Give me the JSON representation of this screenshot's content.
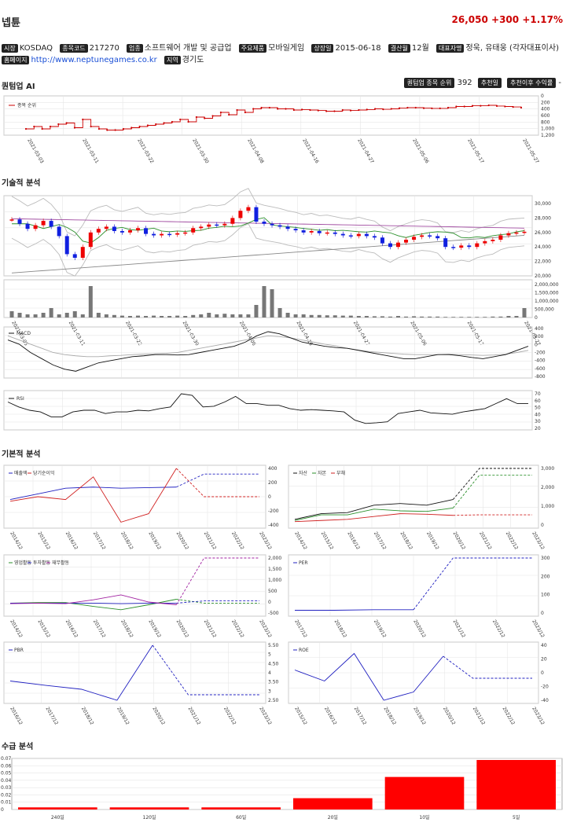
{
  "header": {
    "name": "넵튠",
    "price": "26,050",
    "change": "+300",
    "change_pct": "+1.17%"
  },
  "info1": [
    {
      "label": "시장",
      "value": "KOSDAQ"
    },
    {
      "label": "종목코드",
      "value": "217270"
    },
    {
      "label": "업종",
      "value": "소프트웨어 개발 및 공급업"
    },
    {
      "label": "주요제품",
      "value": "모바일게임"
    },
    {
      "label": "상장일",
      "value": "2015-06-18"
    },
    {
      "label": "결산월",
      "value": "12월"
    },
    {
      "label": "대표자명",
      "value": "정욱, 유태웅 (각자대표이사)"
    }
  ],
  "info2": [
    {
      "label": "홈페이지",
      "value": "http://www.neptunegames.co.kr"
    },
    {
      "label": "지역",
      "value": "경기도"
    }
  ],
  "sections": {
    "quantum": "퀀텀업 AI",
    "technical": "기술적 분석",
    "fundamental": "기본적 분석",
    "supply": "수급 분석"
  },
  "quantum": {
    "rank_label": "퀀텀업 종목 순위",
    "rank_value": "392",
    "rec_date_label": "추천일",
    "rec_return_label": "추천이후 수익률",
    "rec_return_value": "-"
  },
  "charts": {
    "rank": {
      "legend": "종목 순위",
      "yticks": [
        "0",
        "200",
        "400",
        "600",
        "800",
        "1,000",
        "1,200"
      ]
    },
    "dates": [
      "2021-03-03",
      "2021-03-11",
      "2021-03-22",
      "2021-03-30",
      "2021-04-08",
      "2021-04-16",
      "2021-04-27",
      "2021-05-06",
      "2021-05-17",
      "2021-05-27"
    ],
    "price_yticks": [
      "30,000",
      "28,000",
      "26,000",
      "24,000",
      "22,000",
      "20,000"
    ],
    "vol_yticks": [
      "2,000,000",
      "1,500,000",
      "1,000,000",
      "500,000",
      "0"
    ],
    "macd": {
      "legend": "MACD",
      "yticks": [
        "400",
        "200",
        "0",
        "-200",
        "-400",
        "-600",
        "-800"
      ]
    },
    "rsi": {
      "legend": "RSI",
      "yticks": [
        "70",
        "60",
        "50",
        "40",
        "30",
        "20"
      ]
    },
    "years_a": [
      "2014/12",
      "2015/12",
      "2016/12",
      "2017/12",
      "2018/12",
      "2019/12",
      "2020/12",
      "2021/12",
      "2022/12",
      "2023/12"
    ],
    "years_b": [
      "2017/12",
      "2018/12",
      "2019/12",
      "2020/12",
      "2021/12",
      "2022/12",
      "2023/12"
    ],
    "years_c": [
      "2016/12",
      "2017/12",
      "2018/12",
      "2019/12",
      "2020/12",
      "2021/12",
      "2022/12",
      "2023/12"
    ],
    "years_d": [
      "2015/12",
      "2016/12",
      "2017/12",
      "2018/12",
      "2019/12",
      "2020/12",
      "2021/12",
      "2022/12",
      "2023/12"
    ],
    "sales": {
      "legend": [
        "매출액",
        "당기순이익"
      ],
      "yticks": [
        "400",
        "200",
        "0",
        "-200",
        "-400"
      ]
    },
    "assets": {
      "legend": [
        "자산",
        "자본",
        "부채"
      ],
      "yticks": [
        "3,000",
        "2,000",
        "1,000",
        "0"
      ]
    },
    "cash": {
      "legend": [
        "영업활동",
        "투자활동",
        "재무활동"
      ],
      "yticks": [
        "2,000",
        "1,500",
        "1,000",
        "500",
        "0",
        "-500"
      ]
    },
    "per": {
      "legend": "PER",
      "yticks": [
        "300",
        "200",
        "100",
        "0"
      ]
    },
    "pbr": {
      "legend": "PBR",
      "yticks": [
        "5.50",
        "5",
        "4.50",
        "4",
        "3.50",
        "3",
        "2.50"
      ]
    },
    "roe": {
      "legend": "ROE",
      "yticks": [
        "40",
        "20",
        "0",
        "-20",
        "-40"
      ]
    },
    "supply": {
      "categories": [
        "240일",
        "120일",
        "60일",
        "20일",
        "10일",
        "5일"
      ],
      "values": [
        0.003,
        0.003,
        0.003,
        0.016,
        0.046,
        0.07
      ],
      "yticks": [
        "0.07",
        "0.06",
        "0.05",
        "0.04",
        "0.03",
        "0.02",
        "0.01",
        "0"
      ]
    }
  }
}
